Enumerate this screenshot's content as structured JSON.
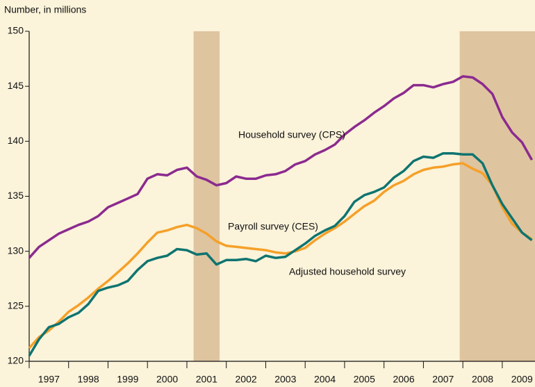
{
  "chart_data": {
    "type": "line",
    "y_axis_label": "Number, in millions",
    "x": [
      1997,
      1997.25,
      1997.5,
      1997.75,
      1998,
      1998.25,
      1998.5,
      1998.75,
      1999,
      1999.25,
      1999.5,
      1999.75,
      2000,
      2000.25,
      2000.5,
      2000.75,
      2001,
      2001.25,
      2001.5,
      2001.75,
      2002,
      2002.25,
      2002.5,
      2002.75,
      2003,
      2003.25,
      2003.5,
      2003.75,
      2004,
      2004.25,
      2004.5,
      2004.75,
      2005,
      2005.25,
      2005.5,
      2005.75,
      2006,
      2006.25,
      2006.5,
      2006.75,
      2007,
      2007.25,
      2007.5,
      2007.75,
      2008,
      2008.25,
      2008.5,
      2008.75,
      2009,
      2009.25,
      2009.5,
      2009.75
    ],
    "series": [
      {
        "name": "Household survey (CPS)",
        "color": "#8b2a8f",
        "values": [
          129.4,
          130.4,
          131.0,
          131.6,
          132.0,
          132.4,
          132.7,
          133.2,
          134.0,
          134.4,
          134.8,
          135.2,
          136.6,
          137.0,
          136.9,
          137.4,
          137.6,
          136.8,
          136.5,
          136.0,
          136.2,
          136.8,
          136.6,
          136.6,
          136.9,
          137.0,
          137.3,
          137.9,
          138.2,
          138.8,
          139.2,
          139.7,
          140.6,
          141.3,
          141.9,
          142.6,
          143.2,
          143.9,
          144.4,
          145.1,
          145.1,
          144.9,
          145.2,
          145.4,
          145.9,
          145.8,
          145.2,
          144.3,
          142.2,
          140.8,
          139.9,
          138.3
        ]
      },
      {
        "name": "Payroll survey (CES)",
        "color": "#f5a028",
        "values": [
          121.2,
          122.2,
          122.8,
          123.6,
          124.5,
          125.1,
          125.8,
          126.6,
          127.3,
          128.1,
          128.9,
          129.8,
          130.8,
          131.7,
          131.9,
          132.2,
          132.4,
          132.1,
          131.6,
          130.9,
          130.5,
          130.4,
          130.3,
          130.2,
          130.1,
          129.9,
          129.8,
          130.0,
          130.3,
          131.0,
          131.6,
          132.1,
          132.7,
          133.4,
          134.1,
          134.6,
          135.4,
          136.0,
          136.4,
          137.0,
          137.4,
          137.6,
          137.7,
          137.9,
          138.0,
          137.5,
          137.1,
          136.0,
          134.0,
          132.5,
          131.7,
          131.1
        ]
      },
      {
        "name": "Adjusted household survey",
        "color": "#0e7470",
        "values": [
          120.5,
          122.0,
          123.1,
          123.4,
          124.0,
          124.4,
          125.2,
          126.4,
          126.7,
          126.9,
          127.3,
          128.3,
          129.1,
          129.4,
          129.6,
          130.2,
          130.1,
          129.7,
          129.8,
          128.8,
          129.2,
          129.2,
          129.3,
          129.1,
          129.6,
          129.4,
          129.5,
          130.1,
          130.7,
          131.4,
          131.9,
          132.3,
          133.2,
          134.5,
          135.1,
          135.4,
          135.8,
          136.7,
          137.3,
          138.2,
          138.6,
          138.5,
          138.9,
          138.9,
          138.8,
          138.8,
          138.0,
          136.0,
          134.3,
          133.0,
          131.7,
          131.0
        ]
      }
    ],
    "shaded_periods": [
      [
        2001.17,
        2001.83
      ],
      [
        2007.92,
        2009.83
      ]
    ],
    "shade_color": "#dfc4a0",
    "xlim": [
      1997,
      2009.83
    ],
    "xticks": [
      {
        "value": 1997,
        "label": "1997"
      },
      {
        "value": 1998,
        "label": "1998"
      },
      {
        "value": 1999,
        "label": "1999"
      },
      {
        "value": 2000,
        "label": "2000"
      },
      {
        "value": 2001,
        "label": "2001"
      },
      {
        "value": 2002,
        "label": "2002"
      },
      {
        "value": 2003,
        "label": "2003"
      },
      {
        "value": 2004,
        "label": "2004"
      },
      {
        "value": 2005,
        "label": "2005"
      },
      {
        "value": 2006,
        "label": "2006"
      },
      {
        "value": 2007,
        "label": "2007"
      },
      {
        "value": 2008,
        "label": "2008"
      },
      {
        "value": 2009,
        "label": "2009"
      }
    ],
    "ylim": [
      120,
      150
    ],
    "yticks": [
      120,
      125,
      130,
      135,
      140,
      145,
      150
    ]
  }
}
